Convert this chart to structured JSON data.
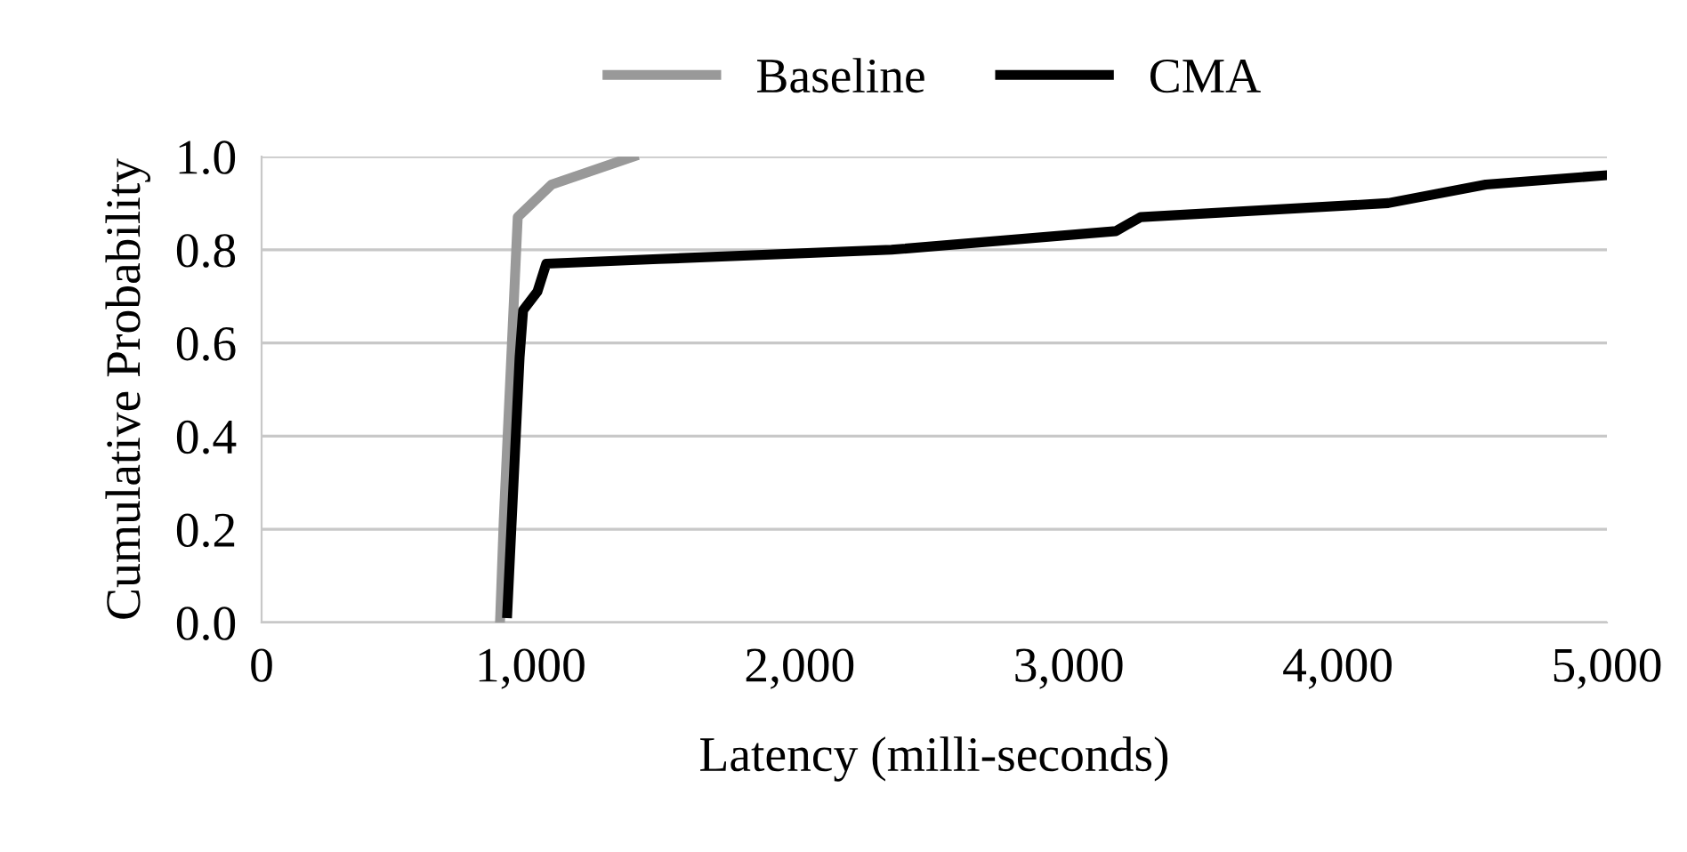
{
  "chart_data": {
    "type": "line",
    "xlabel": "Latency (milli-seconds)",
    "ylabel": "Cumulative Probability",
    "series": [
      {
        "name": "Baseline",
        "color": "#999999",
        "x": [
          886,
          900,
          952,
          1078,
          1382
        ],
        "values": [
          0.0,
          0.22,
          0.87,
          0.94,
          1.0
        ]
      },
      {
        "name": "CMA",
        "color": "#000000",
        "x": [
          913,
          959,
          972,
          1025,
          1058,
          1475,
          2341,
          3175,
          3267,
          4187,
          4550,
          5000
        ],
        "values": [
          0.02,
          0.57,
          0.67,
          0.71,
          0.77,
          0.78,
          0.8,
          0.84,
          0.87,
          0.9,
          0.94,
          0.96
        ]
      }
    ],
    "xlim": [
      0,
      5000
    ],
    "xticks": [
      {
        "value": 0,
        "label": "0"
      },
      {
        "value": 1000,
        "label": "1,000"
      },
      {
        "value": 2000,
        "label": "2,000"
      },
      {
        "value": 3000,
        "label": "3,000"
      },
      {
        "value": 4000,
        "label": "4,000"
      },
      {
        "value": 5000,
        "label": "5,000"
      }
    ],
    "ylim": [
      0,
      1.0
    ],
    "yticks": [
      {
        "value": 0,
        "label": "0.0"
      },
      {
        "value": 0.2,
        "label": "0.2"
      },
      {
        "value": 0.4,
        "label": "0.4"
      },
      {
        "value": 0.6,
        "label": "0.6"
      },
      {
        "value": 0.8,
        "label": "0.8"
      },
      {
        "value": 1.0,
        "label": "1.0"
      }
    ],
    "grid": "y",
    "legend": "top",
    "marker": "none",
    "line_style": "solid"
  }
}
